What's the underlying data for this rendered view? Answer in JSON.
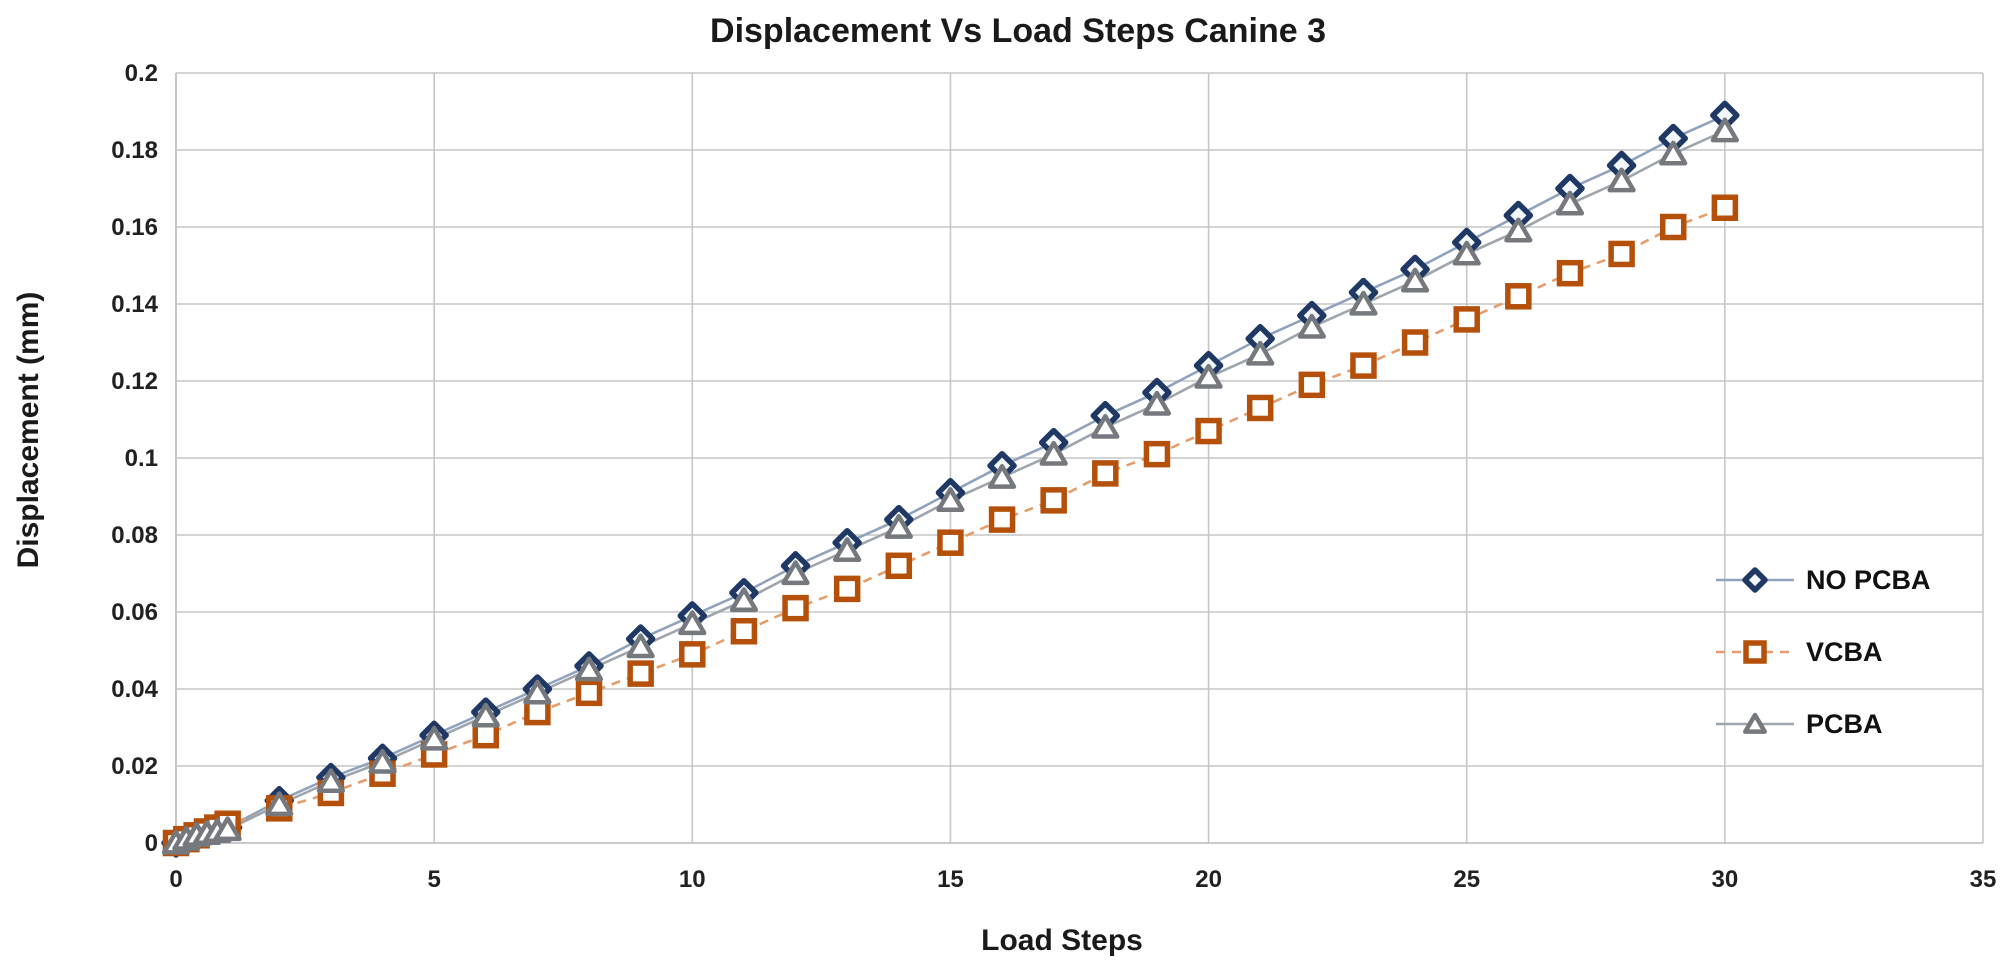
{
  "chart_data": {
    "type": "line",
    "title": "Displacement Vs Load Steps Canine 3",
    "xlabel": "Load Steps",
    "ylabel": "Displacement (mm)",
    "xlim": [
      0,
      35
    ],
    "ylim": [
      0,
      0.2
    ],
    "grid": true,
    "grid_color": "#c6c6c6",
    "axis_color": "#b8b8b8",
    "background_color": "#ffffff",
    "text_color": "#1a1a1a",
    "legend_position": "right-inside",
    "xticks": {
      "values": [
        0,
        5,
        10,
        15,
        20,
        25,
        30,
        35
      ],
      "labels": [
        "0",
        "5",
        "10",
        "15",
        "20",
        "25",
        "30",
        "35"
      ]
    },
    "yticks": {
      "values": [
        0,
        0.02,
        0.04,
        0.06,
        0.08,
        0.1,
        0.12,
        0.14,
        0.16,
        0.18,
        0.2
      ],
      "labels": [
        "0",
        "0.02",
        "0.04",
        "0.06",
        "0.08",
        "0.1",
        "0.12",
        "0.14",
        "0.16",
        "0.18",
        "0.2"
      ]
    },
    "x": [
      0,
      0.2,
      0.4,
      0.6,
      0.8,
      1,
      2,
      3,
      4,
      5,
      6,
      7,
      8,
      9,
      10,
      11,
      12,
      13,
      14,
      15,
      16,
      17,
      18,
      19,
      20,
      21,
      22,
      23,
      24,
      25,
      26,
      27,
      28,
      29,
      30
    ],
    "series": [
      {
        "name": "NO PCBA",
        "marker": "diamond",
        "marker_color": "#1F3864",
        "marker_fill": "#f2f7fc",
        "line_color": "#91A3BC",
        "line_dash": "solid",
        "values": [
          0,
          0.001,
          0.002,
          0.003,
          0.0035,
          0.004,
          0.011,
          0.017,
          0.022,
          0.028,
          0.034,
          0.04,
          0.046,
          0.053,
          0.059,
          0.065,
          0.072,
          0.078,
          0.084,
          0.091,
          0.098,
          0.104,
          0.111,
          0.117,
          0.124,
          0.131,
          0.137,
          0.143,
          0.149,
          0.156,
          0.163,
          0.17,
          0.176,
          0.183,
          0.189
        ]
      },
      {
        "name": "VCBA",
        "marker": "square",
        "marker_color": "#B4500A",
        "marker_fill": "#ffffff",
        "line_color": "#E49E6E",
        "line_dash": "dashed",
        "values": [
          0,
          0.001,
          0.002,
          0.003,
          0.004,
          0.005,
          0.009,
          0.013,
          0.018,
          0.023,
          0.028,
          0.034,
          0.039,
          0.044,
          0.049,
          0.055,
          0.061,
          0.066,
          0.072,
          0.078,
          0.084,
          0.089,
          0.096,
          0.101,
          0.107,
          0.113,
          0.119,
          0.124,
          0.13,
          0.136,
          0.142,
          0.148,
          0.153,
          0.16,
          0.165
        ]
      },
      {
        "name": "PCBA",
        "marker": "triangle",
        "marker_color": "#75797E",
        "marker_fill": "#ffffff",
        "line_color": "#9EA5AC",
        "line_dash": "solid",
        "values": [
          0,
          0.001,
          0.002,
          0.0025,
          0.003,
          0.0035,
          0.01,
          0.016,
          0.021,
          0.027,
          0.033,
          0.039,
          0.045,
          0.051,
          0.057,
          0.063,
          0.07,
          0.076,
          0.082,
          0.089,
          0.095,
          0.101,
          0.108,
          0.114,
          0.121,
          0.127,
          0.134,
          0.14,
          0.146,
          0.153,
          0.159,
          0.166,
          0.172,
          0.179,
          0.185
        ]
      }
    ]
  }
}
